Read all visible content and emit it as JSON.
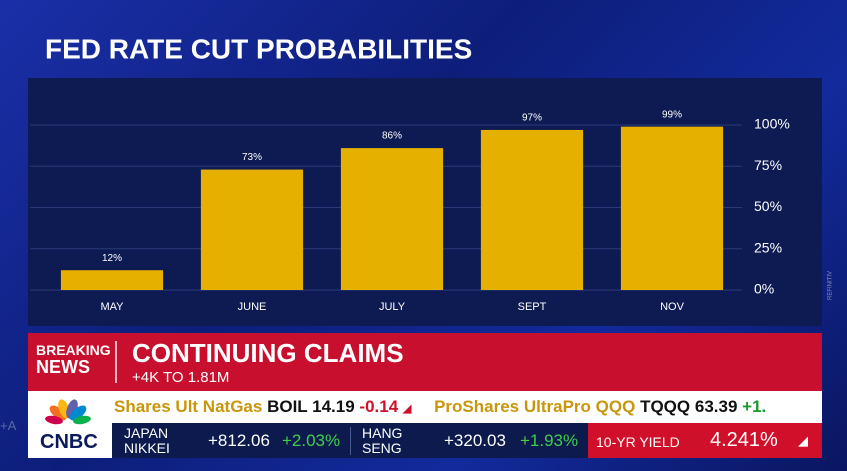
{
  "chart_data": {
    "type": "bar",
    "title": "FED RATE CUT PROBABILITIES",
    "categories": [
      "MAY",
      "JUNE",
      "JULY",
      "SEPT",
      "NOV"
    ],
    "values": [
      12,
      73,
      86,
      97,
      99
    ],
    "value_labels": [
      "12%",
      "73%",
      "86%",
      "97%",
      "99%"
    ],
    "color": "#e5b000",
    "ylim": [
      0,
      100
    ],
    "yticks": [
      {
        "value": 0,
        "label": "0%"
      },
      {
        "value": 25,
        "label": "25%"
      },
      {
        "value": 50,
        "label": "50%"
      },
      {
        "value": 75,
        "label": "75%"
      },
      {
        "value": 100,
        "label": "100%"
      }
    ],
    "grid": true,
    "source": "REFINITIV"
  },
  "banner": {
    "label_top": "BREAKING",
    "label_bottom": "NEWS",
    "headline": "CONTINUING CLAIMS",
    "subhead": "+4K TO 1.81M"
  },
  "ticker": [
    {
      "name": "Shares Ult NatGas",
      "symbol": "BOIL",
      "price": "14.19",
      "change": "-0.14"
    },
    {
      "name": "ProShares UltraPro QQQ",
      "symbol": "TQQQ",
      "price": "63.39",
      "change": "+1."
    }
  ],
  "markets": [
    {
      "name_top": "JAPAN",
      "name_bottom": "NIKKEI",
      "points": "+812.06",
      "percent": "+2.03%"
    },
    {
      "name_top": "HANG",
      "name_bottom": "SENG",
      "points": "+320.03",
      "percent": "+1.93%"
    }
  ],
  "yield": {
    "name": "10-YR YIELD",
    "value": "4.241%"
  },
  "logo": "CNBC",
  "edge_text": "+A"
}
